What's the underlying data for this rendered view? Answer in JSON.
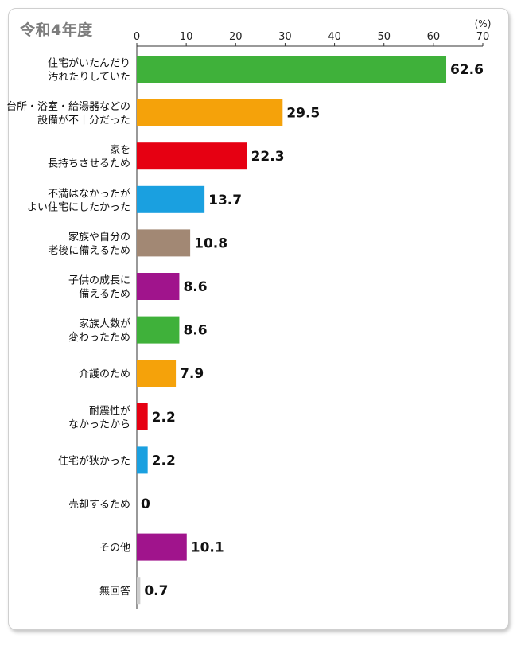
{
  "panel": {
    "title": "令和4年度"
  },
  "chart_data": {
    "type": "bar",
    "orientation": "horizontal",
    "title": "令和4年度",
    "unit": "(%)",
    "xlim": [
      0,
      70
    ],
    "xticks": [
      "0",
      "10",
      "20",
      "30",
      "40",
      "50",
      "60",
      "70"
    ],
    "categories": [
      [
        "住宅がいたんだり",
        "汚れたりしていた"
      ],
      [
        "台所・浴室・給湯器などの",
        "設備が不十分だった"
      ],
      [
        "家を",
        "長持ちさせるため"
      ],
      [
        "不満はなかったが",
        "よい住宅にしたかった"
      ],
      [
        "家族や自分の",
        "老後に備えるため"
      ],
      [
        "子供の成長に",
        "備えるため"
      ],
      [
        "家族人数が",
        "変わったため"
      ],
      [
        "介護のため"
      ],
      [
        "耐震性が",
        "なかったから"
      ],
      [
        "住宅が狭かった"
      ],
      [
        "売却するため"
      ],
      [
        "その他"
      ],
      [
        "無回答"
      ]
    ],
    "values": [
      62.6,
      29.5,
      22.3,
      13.7,
      10.8,
      8.6,
      8.6,
      7.9,
      2.2,
      2.2,
      0,
      10.1,
      0.7
    ],
    "value_labels": [
      "62.6",
      "29.5",
      "22.3",
      "13.7",
      "10.8",
      "8.6",
      "8.6",
      "7.9",
      "2.2",
      "2.2",
      "0",
      "10.1",
      "0.7"
    ],
    "colors": [
      "#3fb13a",
      "#f5a20a",
      "#e60012",
      "#1aa0e0",
      "#a28874",
      "#a0148c",
      "#3fb13a",
      "#f5a20a",
      "#e60012",
      "#1aa0e0",
      "#cccccc",
      "#a0148c",
      "#cccccc"
    ],
    "grid": false,
    "legend": "none"
  }
}
